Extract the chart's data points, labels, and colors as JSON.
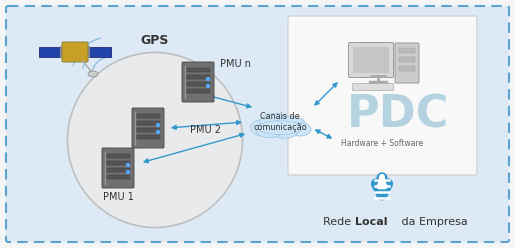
{
  "bg_outer": "#f5f5f5",
  "bg_inner": "#ddeaf5",
  "border_color": "#5ba3d0",
  "pdc_box_color": "#f8f8f8",
  "pdc_box_edge": "#cccccc",
  "oval_color": "#ebebeb",
  "oval_edge": "#bbbbbb",
  "cloud_color": "#cce4f5",
  "cloud_edge": "#99c4e0",
  "arrow_color": "#3399cc",
  "gps_label": "GPS",
  "pmu1_label": "PMU 1",
  "pmu2_label": "PMU 2",
  "pmun_label": "PMU n",
  "canal_label": "Canais de\ncomunicação",
  "pdc_label": "PDC",
  "hw_sw_label": "Hardware + Software",
  "rede_label": "Rede Local da Empresa"
}
